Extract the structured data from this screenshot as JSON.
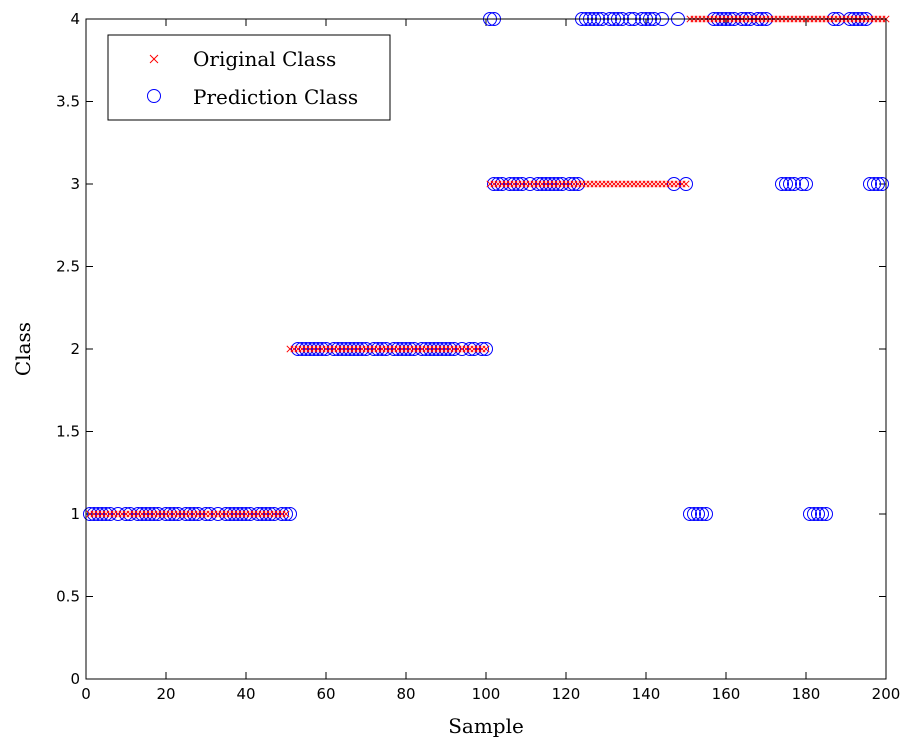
{
  "chart_data": {
    "type": "scatter",
    "title": "",
    "xlabel": "Sample",
    "ylabel": "Class",
    "xlim": [
      0,
      200
    ],
    "ylim": [
      0,
      4
    ],
    "x_ticks": [
      "0",
      "20",
      "40",
      "60",
      "80",
      "100",
      "120",
      "140",
      "160",
      "180",
      "200"
    ],
    "y_ticks": [
      "0",
      "0.5",
      "1",
      "1.5",
      "2",
      "2.5",
      "3",
      "3.5",
      "4"
    ],
    "grid": false,
    "legend_position": "top-left",
    "series": [
      {
        "name": "Original Class",
        "marker": "x",
        "color": "#ff0000",
        "ranges": [
          {
            "from": 1,
            "to": 50,
            "y": 1
          },
          {
            "from": 51,
            "to": 100,
            "y": 2
          },
          {
            "from": 101,
            "to": 150,
            "y": 3
          },
          {
            "from": 151,
            "to": 200,
            "y": 4
          }
        ]
      },
      {
        "name": "Prediction Class",
        "marker": "circle",
        "color": "#0000ff",
        "points": [
          [
            1,
            1
          ],
          [
            2,
            1
          ],
          [
            3,
            1
          ],
          [
            4,
            1
          ],
          [
            5,
            1
          ],
          [
            6,
            1
          ],
          [
            8,
            1
          ],
          [
            10,
            1
          ],
          [
            11,
            1
          ],
          [
            13,
            1
          ],
          [
            14,
            1
          ],
          [
            15,
            1
          ],
          [
            16,
            1
          ],
          [
            17,
            1
          ],
          [
            18,
            1
          ],
          [
            20,
            1
          ],
          [
            21,
            1
          ],
          [
            22,
            1
          ],
          [
            23,
            1
          ],
          [
            25,
            1
          ],
          [
            26,
            1
          ],
          [
            27,
            1
          ],
          [
            28,
            1
          ],
          [
            30,
            1
          ],
          [
            31,
            1
          ],
          [
            33,
            1
          ],
          [
            35,
            1
          ],
          [
            36,
            1
          ],
          [
            37,
            1
          ],
          [
            38,
            1
          ],
          [
            39,
            1
          ],
          [
            40,
            1
          ],
          [
            41,
            1
          ],
          [
            43,
            1
          ],
          [
            44,
            1
          ],
          [
            45,
            1
          ],
          [
            46,
            1
          ],
          [
            47,
            1
          ],
          [
            49,
            1
          ],
          [
            50,
            1
          ],
          [
            51,
            1
          ],
          [
            53,
            2
          ],
          [
            54,
            2
          ],
          [
            55,
            2
          ],
          [
            56,
            2
          ],
          [
            57,
            2
          ],
          [
            58,
            2
          ],
          [
            59,
            2
          ],
          [
            60,
            2
          ],
          [
            62,
            2
          ],
          [
            63,
            2
          ],
          [
            64,
            2
          ],
          [
            65,
            2
          ],
          [
            66,
            2
          ],
          [
            67,
            2
          ],
          [
            68,
            2
          ],
          [
            69,
            2
          ],
          [
            70,
            2
          ],
          [
            72,
            2
          ],
          [
            73,
            2
          ],
          [
            74,
            2
          ],
          [
            75,
            2
          ],
          [
            77,
            2
          ],
          [
            78,
            2
          ],
          [
            79,
            2
          ],
          [
            80,
            2
          ],
          [
            81,
            2
          ],
          [
            82,
            2
          ],
          [
            84,
            2
          ],
          [
            85,
            2
          ],
          [
            86,
            2
          ],
          [
            87,
            2
          ],
          [
            88,
            2
          ],
          [
            89,
            2
          ],
          [
            90,
            2
          ],
          [
            91,
            2
          ],
          [
            92,
            2
          ],
          [
            94,
            2
          ],
          [
            96,
            2
          ],
          [
            97,
            2
          ],
          [
            99,
            2
          ],
          [
            100,
            2
          ],
          [
            102,
            3
          ],
          [
            103,
            3
          ],
          [
            104,
            3
          ],
          [
            106,
            3
          ],
          [
            107,
            3
          ],
          [
            108,
            3
          ],
          [
            109,
            3
          ],
          [
            111,
            3
          ],
          [
            113,
            3
          ],
          [
            114,
            3
          ],
          [
            115,
            3
          ],
          [
            116,
            3
          ],
          [
            117,
            3
          ],
          [
            118,
            3
          ],
          [
            119,
            3
          ],
          [
            121,
            3
          ],
          [
            122,
            3
          ],
          [
            123,
            3
          ],
          [
            147,
            3
          ],
          [
            150,
            3
          ],
          [
            101,
            4
          ],
          [
            102,
            4
          ],
          [
            124,
            4
          ],
          [
            125,
            4
          ],
          [
            126,
            4
          ],
          [
            127,
            4
          ],
          [
            128,
            4
          ],
          [
            129,
            4
          ],
          [
            131,
            4
          ],
          [
            132,
            4
          ],
          [
            133,
            4
          ],
          [
            134,
            4
          ],
          [
            136,
            4
          ],
          [
            137,
            4
          ],
          [
            139,
            4
          ],
          [
            140,
            4
          ],
          [
            141,
            4
          ],
          [
            142,
            4
          ],
          [
            144,
            4
          ],
          [
            148,
            4
          ],
          [
            151,
            1
          ],
          [
            152,
            1
          ],
          [
            153,
            1
          ],
          [
            154,
            1
          ],
          [
            155,
            1
          ],
          [
            157,
            4
          ],
          [
            158,
            4
          ],
          [
            159,
            4
          ],
          [
            160,
            4
          ],
          [
            161,
            4
          ],
          [
            162,
            4
          ],
          [
            164,
            4
          ],
          [
            165,
            4
          ],
          [
            166,
            4
          ],
          [
            168,
            4
          ],
          [
            169,
            4
          ],
          [
            170,
            4
          ],
          [
            174,
            3
          ],
          [
            175,
            3
          ],
          [
            176,
            3
          ],
          [
            177,
            3
          ],
          [
            179,
            3
          ],
          [
            180,
            3
          ],
          [
            181,
            1
          ],
          [
            182,
            1
          ],
          [
            183,
            1
          ],
          [
            184,
            1
          ],
          [
            185,
            1
          ],
          [
            187,
            4
          ],
          [
            188,
            4
          ],
          [
            191,
            4
          ],
          [
            192,
            4
          ],
          [
            193,
            4
          ],
          [
            194,
            4
          ],
          [
            195,
            4
          ],
          [
            196,
            3
          ],
          [
            197,
            3
          ],
          [
            198,
            3
          ],
          [
            199,
            3
          ]
        ]
      }
    ]
  }
}
